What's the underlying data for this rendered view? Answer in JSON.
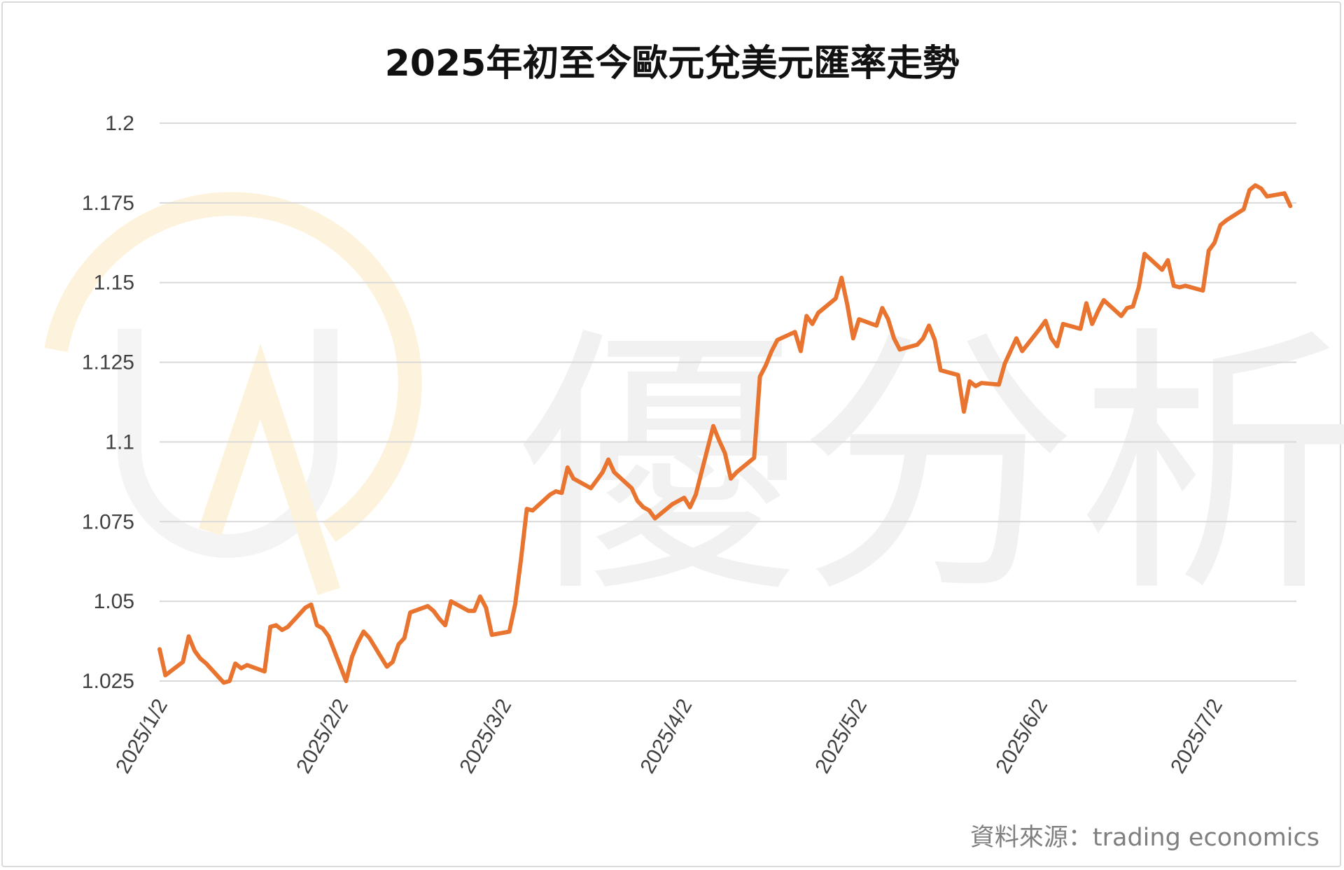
{
  "title": "2025年初至今歐元兌美元匯率走勢",
  "source": "資料來源：trading economics",
  "watermark": {
    "logo_text": "優分析",
    "logo_color": "#fdf3dc",
    "text_color": "#f1f1f1"
  },
  "colors": {
    "line": "#e8742f",
    "grid": "#d9d9d9"
  },
  "chart_data": {
    "type": "line",
    "title": "2025年初至今歐元兌美元匯率走勢",
    "xlabel": "",
    "ylabel": "",
    "ylim": [
      1.025,
      1.2
    ],
    "y_ticks": [
      "1.025",
      "1.05",
      "1.075",
      "1.1",
      "1.125",
      "1.15",
      "1.175",
      "1.2"
    ],
    "x_ticks": [
      "2025/1/2",
      "2025/2/2",
      "2025/3/2",
      "2025/4/2",
      "2025/5/2",
      "2025/6/2",
      "2025/7/2"
    ],
    "x_tick_dates": [
      "2025-01-02",
      "2025-02-02",
      "2025-03-02",
      "2025-04-02",
      "2025-05-02",
      "2025-06-02",
      "2025-07-02"
    ],
    "xlim": [
      "2025-01-02",
      "2025-07-08"
    ],
    "grid": true,
    "legend": "none",
    "series": [
      {
        "points": [
          [
            "2025-01-02",
            1.035
          ],
          [
            "2025-01-03",
            1.0268
          ],
          [
            "2025-01-06",
            1.031
          ],
          [
            "2025-01-07",
            1.039
          ],
          [
            "2025-01-08",
            1.0345
          ],
          [
            "2025-01-09",
            1.032
          ],
          [
            "2025-01-10",
            1.0305
          ],
          [
            "2025-01-13",
            1.0245
          ],
          [
            "2025-01-14",
            1.025
          ],
          [
            "2025-01-15",
            1.0305
          ],
          [
            "2025-01-16",
            1.029
          ],
          [
            "2025-01-17",
            1.03
          ],
          [
            "2025-01-20",
            1.028
          ],
          [
            "2025-01-21",
            1.042
          ],
          [
            "2025-01-22",
            1.0425
          ],
          [
            "2025-01-23",
            1.041
          ],
          [
            "2025-01-24",
            1.042
          ],
          [
            "2025-01-27",
            1.048
          ],
          [
            "2025-01-28",
            1.049
          ],
          [
            "2025-01-29",
            1.0425
          ],
          [
            "2025-01-30",
            1.0415
          ],
          [
            "2025-01-31",
            1.039
          ],
          [
            "2025-02-03",
            1.025
          ],
          [
            "2025-02-04",
            1.0325
          ],
          [
            "2025-02-05",
            1.037
          ],
          [
            "2025-02-06",
            1.0405
          ],
          [
            "2025-02-07",
            1.0385
          ],
          [
            "2025-02-10",
            1.0295
          ],
          [
            "2025-02-11",
            1.031
          ],
          [
            "2025-02-12",
            1.0365
          ],
          [
            "2025-02-13",
            1.0385
          ],
          [
            "2025-02-14",
            1.0465
          ],
          [
            "2025-02-17",
            1.0485
          ],
          [
            "2025-02-18",
            1.047
          ],
          [
            "2025-02-19",
            1.0445
          ],
          [
            "2025-02-20",
            1.0425
          ],
          [
            "2025-02-21",
            1.05
          ],
          [
            "2025-02-24",
            1.047
          ],
          [
            "2025-02-25",
            1.047
          ],
          [
            "2025-02-26",
            1.0515
          ],
          [
            "2025-02-27",
            1.048
          ],
          [
            "2025-02-28",
            1.0395
          ],
          [
            "2025-03-03",
            1.0405
          ],
          [
            "2025-03-04",
            1.049
          ],
          [
            "2025-03-05",
            1.063
          ],
          [
            "2025-03-06",
            1.079
          ],
          [
            "2025-03-07",
            1.0785
          ],
          [
            "2025-03-10",
            1.0835
          ],
          [
            "2025-03-11",
            1.0845
          ],
          [
            "2025-03-12",
            1.084
          ],
          [
            "2025-03-13",
            1.092
          ],
          [
            "2025-03-14",
            1.0885
          ],
          [
            "2025-03-17",
            1.0855
          ],
          [
            "2025-03-18",
            1.088
          ],
          [
            "2025-03-19",
            1.0905
          ],
          [
            "2025-03-20",
            1.0945
          ],
          [
            "2025-03-21",
            1.0905
          ],
          [
            "2025-03-24",
            1.0855
          ],
          [
            "2025-03-25",
            1.0815
          ],
          [
            "2025-03-26",
            1.0795
          ],
          [
            "2025-03-27",
            1.0785
          ],
          [
            "2025-03-28",
            1.076
          ],
          [
            "2025-03-31",
            1.0805
          ],
          [
            "2025-04-01",
            1.0815
          ],
          [
            "2025-04-02",
            1.0825
          ],
          [
            "2025-04-03",
            1.0795
          ],
          [
            "2025-04-04",
            1.0835
          ],
          [
            "2025-04-07",
            1.105
          ],
          [
            "2025-04-08",
            1.1005
          ],
          [
            "2025-04-09",
            1.0965
          ],
          [
            "2025-04-10",
            1.0885
          ],
          [
            "2025-04-11",
            1.0905
          ],
          [
            "2025-04-14",
            1.095
          ],
          [
            "2025-04-15",
            1.1205
          ],
          [
            "2025-04-16",
            1.124
          ],
          [
            "2025-04-17",
            1.1285
          ],
          [
            "2025-04-18",
            1.132
          ],
          [
            "2025-04-21",
            1.1345
          ],
          [
            "2025-04-22",
            1.1285
          ],
          [
            "2025-04-23",
            1.1395
          ],
          [
            "2025-04-24",
            1.137
          ],
          [
            "2025-04-25",
            1.1405
          ],
          [
            "2025-04-28",
            1.145
          ],
          [
            "2025-04-29",
            1.1515
          ],
          [
            "2025-04-30",
            1.143
          ],
          [
            "2025-05-01",
            1.1325
          ],
          [
            "2025-05-02",
            1.1385
          ],
          [
            "2025-05-05",
            1.1365
          ],
          [
            "2025-05-06",
            1.142
          ],
          [
            "2025-05-07",
            1.1385
          ],
          [
            "2025-05-08",
            1.1325
          ],
          [
            "2025-05-09",
            1.129
          ],
          [
            "2025-05-12",
            1.1305
          ],
          [
            "2025-05-13",
            1.1325
          ],
          [
            "2025-05-14",
            1.1365
          ],
          [
            "2025-05-15",
            1.132
          ],
          [
            "2025-05-16",
            1.1225
          ],
          [
            "2025-05-19",
            1.121
          ],
          [
            "2025-05-20",
            1.1095
          ],
          [
            "2025-05-21",
            1.119
          ],
          [
            "2025-05-22",
            1.1175
          ],
          [
            "2025-05-23",
            1.1185
          ],
          [
            "2025-05-26",
            1.118
          ],
          [
            "2025-05-27",
            1.1245
          ],
          [
            "2025-05-28",
            1.1285
          ],
          [
            "2025-05-29",
            1.1325
          ],
          [
            "2025-05-30",
            1.1285
          ],
          [
            "2025-06-02",
            1.1355
          ],
          [
            "2025-06-03",
            1.138
          ],
          [
            "2025-06-04",
            1.1325
          ],
          [
            "2025-06-05",
            1.13
          ],
          [
            "2025-06-06",
            1.137
          ],
          [
            "2025-06-09",
            1.1355
          ],
          [
            "2025-06-10",
            1.1435
          ],
          [
            "2025-06-11",
            1.137
          ],
          [
            "2025-06-12",
            1.141
          ],
          [
            "2025-06-13",
            1.1445
          ],
          [
            "2025-06-16",
            1.1395
          ],
          [
            "2025-06-17",
            1.142
          ],
          [
            "2025-06-18",
            1.1425
          ],
          [
            "2025-06-19",
            1.1485
          ],
          [
            "2025-06-20",
            1.159
          ],
          [
            "2025-06-23",
            1.154
          ],
          [
            "2025-06-24",
            1.157
          ],
          [
            "2025-06-25",
            1.149
          ],
          [
            "2025-06-26",
            1.1485
          ],
          [
            "2025-06-27",
            1.149
          ],
          [
            "2025-06-30",
            1.1475
          ],
          [
            "2025-07-01",
            1.16
          ],
          [
            "2025-07-02",
            1.1625
          ],
          [
            "2025-07-03",
            1.168
          ],
          [
            "2025-07-04",
            1.1695
          ],
          [
            "2025-07-07",
            1.173
          ],
          [
            "2025-07-08",
            1.179
          ],
          [
            "2025-07-09",
            1.1805
          ],
          [
            "2025-07-10",
            1.1795
          ],
          [
            "2025-07-11",
            1.177
          ],
          [
            "2025-07-14",
            1.178
          ],
          [
            "2025-07-15",
            1.174
          ]
        ]
      }
    ]
  }
}
